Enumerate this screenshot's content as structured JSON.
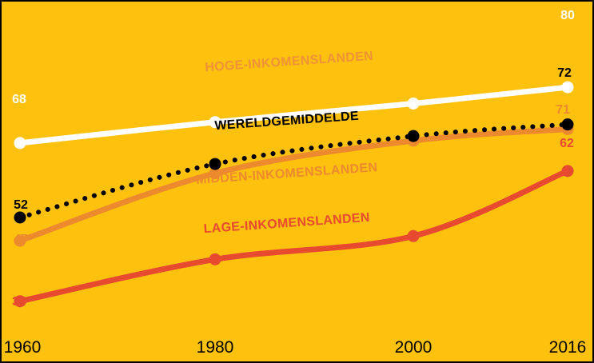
{
  "chart_data": {
    "type": "line",
    "x": [
      1960,
      1980,
      2000,
      2016
    ],
    "x_tick_labels": [
      "1960",
      "1980",
      "2000",
      "2016"
    ],
    "ylim": [
      30,
      85
    ],
    "grid": false,
    "series": [
      {
        "name": "HOGE-INKOMENSLANDEN",
        "values": [
          68,
          72.5,
          76.5,
          80
        ],
        "color": "#ffffff",
        "style": "solid",
        "start_label": "68",
        "end_label": "80"
      },
      {
        "name": "WERELDGEMIDDELDE",
        "values": [
          52,
          63.5,
          69.5,
          72
        ],
        "color": "#000000",
        "style": "dotted",
        "start_label": "52",
        "end_label": "72"
      },
      {
        "name": "MIDDEN-INKOMENSLANDEN",
        "values": [
          47,
          61.5,
          68.5,
          71
        ],
        "color": "#ee8a2e",
        "style": "solid",
        "start_label": "47",
        "end_label": "71"
      },
      {
        "name": "LAGE-INKOMENSLANDEN",
        "values": [
          34,
          43,
          48,
          62
        ],
        "color": "#e84a30",
        "style": "solid",
        "start_label": "34",
        "end_label": "62"
      }
    ],
    "colors": {
      "background": "#fdc10e",
      "border": "#000000"
    }
  }
}
